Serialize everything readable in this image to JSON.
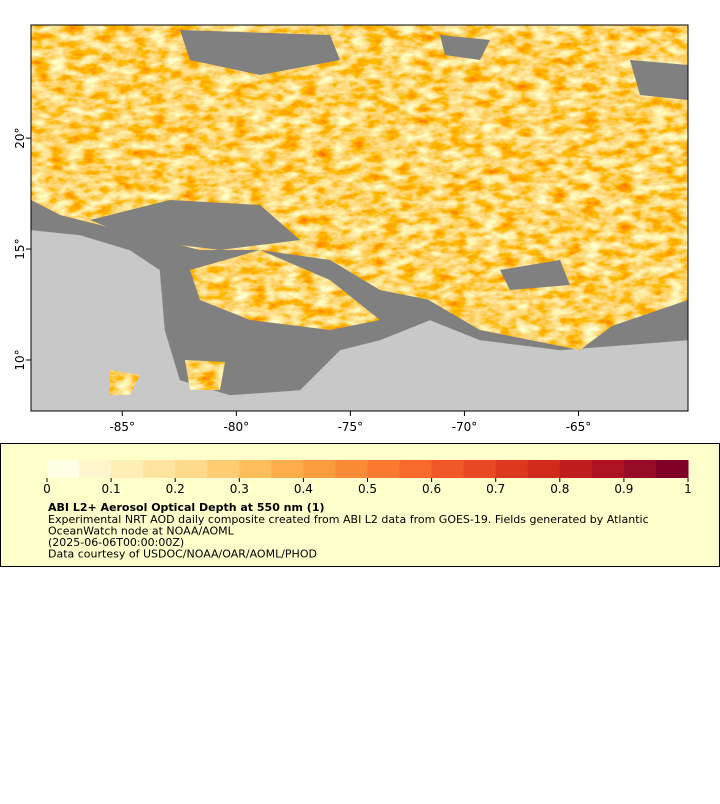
{
  "map": {
    "xlim": [
      -89,
      -60.2
    ],
    "ylim": [
      7.7,
      25.1
    ],
    "xticks": [
      {
        "value": -85,
        "label": "-85°"
      },
      {
        "value": -80,
        "label": "-80°"
      },
      {
        "value": -75,
        "label": "-75°"
      },
      {
        "value": -70,
        "label": "-70°"
      },
      {
        "value": -65,
        "label": "-65°"
      }
    ],
    "yticks": [
      {
        "value": 10,
        "label": "10°"
      },
      {
        "value": 15,
        "label": "15°"
      },
      {
        "value": 20,
        "label": "20°"
      }
    ]
  },
  "legend": {
    "colorbar": {
      "range": [
        0,
        1
      ],
      "ticks": [
        0,
        0.1,
        0.2,
        0.3,
        0.4,
        0.5,
        0.6,
        0.7,
        0.8,
        0.9,
        1
      ],
      "colors": [
        "#ffffe5",
        "#fff5cc",
        "#ffeeb5",
        "#fee49e",
        "#fed98a",
        "#fecc73",
        "#febe5c",
        "#fdad4c",
        "#fd9b3f",
        "#fc8b37",
        "#fb7a30",
        "#f8692b",
        "#f05826",
        "#e84822",
        "#dc381f",
        "#cf2a1c",
        "#c01c1d",
        "#ad1122",
        "#980a26",
        "#800026"
      ]
    },
    "title": "ABI L2+ Aerosol Optical Depth at 550 nm (1)",
    "lines": [
      "Experimental NRT AOD daily composite created from ABI L2 data from GOES-19. Fields generated by Atlantic",
      "OceanWatch node at NOAA/AOML",
      "(2025-06-06T00:00:00Z)",
      "Data courtesy of USDOC/NOAA/OAR/AOML/PHOD"
    ]
  }
}
